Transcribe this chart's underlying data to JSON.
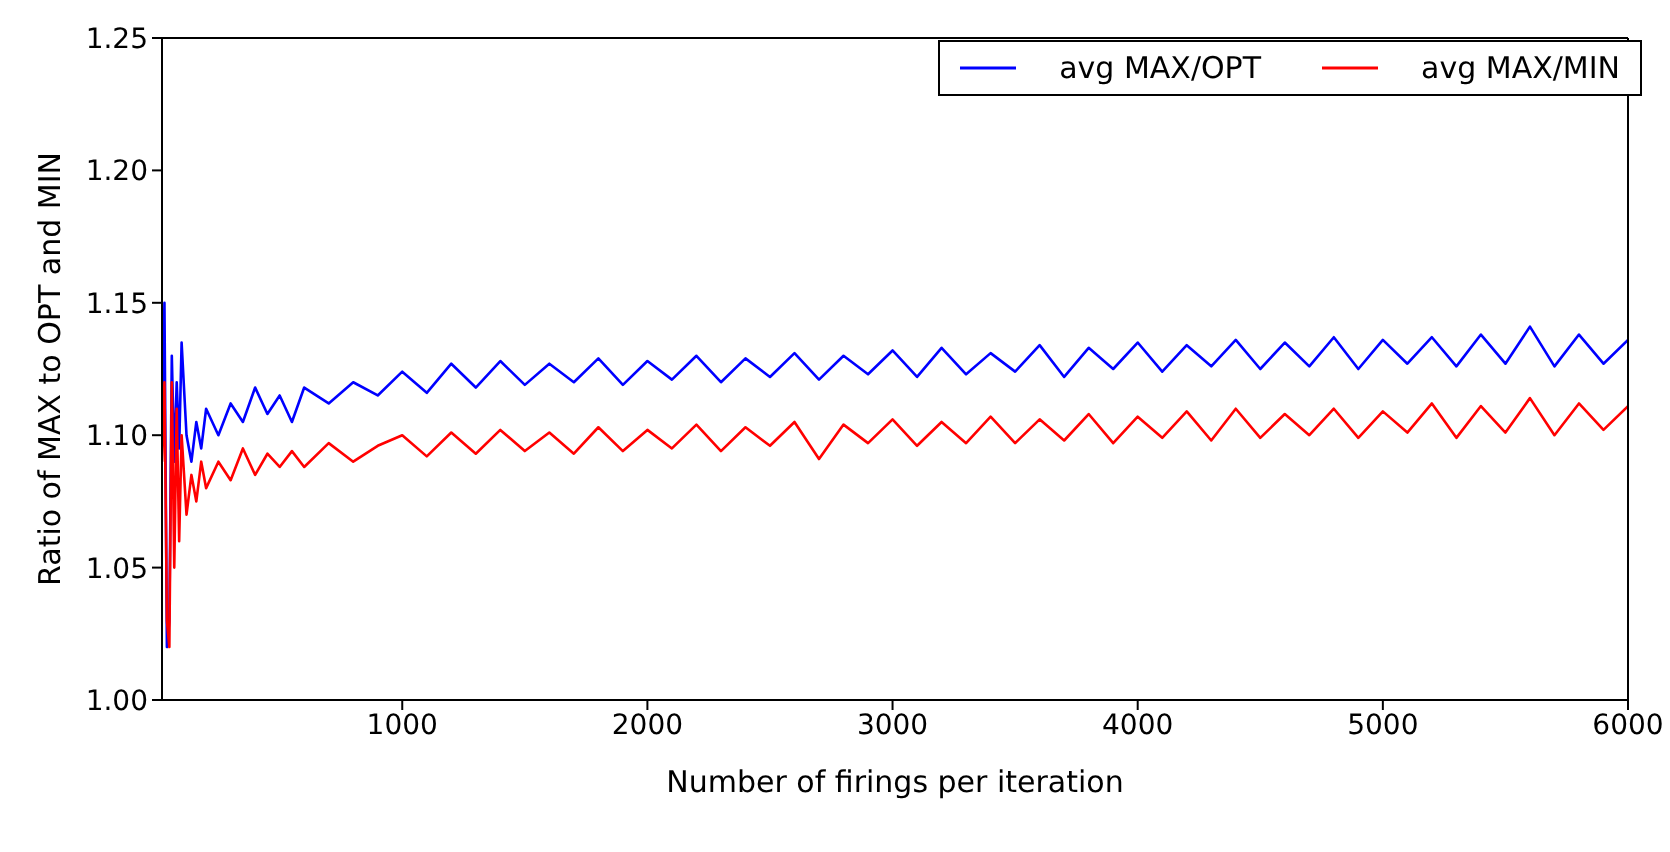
{
  "chart_data": {
    "type": "line",
    "xlabel": "Number of firings per iteration",
    "ylabel": "Ratio of MAX to OPT and MIN",
    "x": [
      20,
      30,
      40,
      50,
      60,
      70,
      80,
      90,
      100,
      120,
      140,
      160,
      180,
      200,
      250,
      300,
      350,
      400,
      450,
      500,
      550,
      600,
      700,
      800,
      900,
      1000,
      1100,
      1200,
      1300,
      1400,
      1500,
      1600,
      1700,
      1800,
      1900,
      2000,
      2100,
      2200,
      2300,
      2400,
      2500,
      2600,
      2700,
      2800,
      2900,
      3000,
      3100,
      3200,
      3300,
      3400,
      3500,
      3600,
      3700,
      3800,
      3900,
      4000,
      4100,
      4200,
      4300,
      4400,
      4500,
      4600,
      4700,
      4800,
      4900,
      5000,
      5100,
      5200,
      5300,
      5400,
      5500,
      5600,
      5700,
      5800,
      5900,
      6000
    ],
    "series": [
      {
        "name": "avg MAX/OPT",
        "color": "#0000ff",
        "values": [
          1.1,
          1.15,
          1.02,
          1.03,
          1.13,
          1.09,
          1.12,
          1.095,
          1.135,
          1.1,
          1.09,
          1.105,
          1.095,
          1.11,
          1.1,
          1.112,
          1.105,
          1.118,
          1.108,
          1.115,
          1.105,
          1.118,
          1.112,
          1.12,
          1.115,
          1.124,
          1.116,
          1.127,
          1.118,
          1.128,
          1.119,
          1.127,
          1.12,
          1.129,
          1.119,
          1.128,
          1.121,
          1.13,
          1.12,
          1.129,
          1.122,
          1.131,
          1.121,
          1.13,
          1.123,
          1.132,
          1.122,
          1.133,
          1.123,
          1.131,
          1.124,
          1.134,
          1.122,
          1.133,
          1.125,
          1.135,
          1.124,
          1.134,
          1.126,
          1.136,
          1.125,
          1.135,
          1.126,
          1.137,
          1.125,
          1.136,
          1.127,
          1.137,
          1.126,
          1.138,
          1.127,
          1.141,
          1.126,
          1.138,
          1.127,
          1.136
        ]
      },
      {
        "name": "avg MAX/MIN",
        "color": "#ff0000",
        "values": [
          1.09,
          1.12,
          1.03,
          1.02,
          1.12,
          1.05,
          1.11,
          1.06,
          1.1,
          1.07,
          1.085,
          1.075,
          1.09,
          1.08,
          1.09,
          1.083,
          1.095,
          1.085,
          1.093,
          1.088,
          1.094,
          1.088,
          1.097,
          1.09,
          1.096,
          1.1,
          1.092,
          1.101,
          1.093,
          1.102,
          1.094,
          1.101,
          1.093,
          1.103,
          1.094,
          1.102,
          1.095,
          1.104,
          1.094,
          1.103,
          1.096,
          1.105,
          1.091,
          1.104,
          1.097,
          1.106,
          1.096,
          1.105,
          1.097,
          1.107,
          1.097,
          1.106,
          1.098,
          1.108,
          1.097,
          1.107,
          1.099,
          1.109,
          1.098,
          1.11,
          1.099,
          1.108,
          1.1,
          1.11,
          1.099,
          1.109,
          1.101,
          1.112,
          1.099,
          1.111,
          1.101,
          1.114,
          1.1,
          1.112,
          1.102,
          1.111
        ]
      }
    ],
    "xlim": [
      20,
      6000
    ],
    "xticks": [
      1000,
      2000,
      3000,
      4000,
      5000,
      6000
    ],
    "ylim": [
      1.0,
      1.25
    ],
    "yticks": [
      {
        "value": 1.0,
        "label": "1.00"
      },
      1.05,
      {
        "value": 1.1,
        "label": "1.10"
      },
      1.15,
      {
        "value": 1.2,
        "label": "1.20"
      },
      1.25
    ],
    "grid": false,
    "legend": "top right",
    "marker": "none",
    "line_style": "solid"
  }
}
